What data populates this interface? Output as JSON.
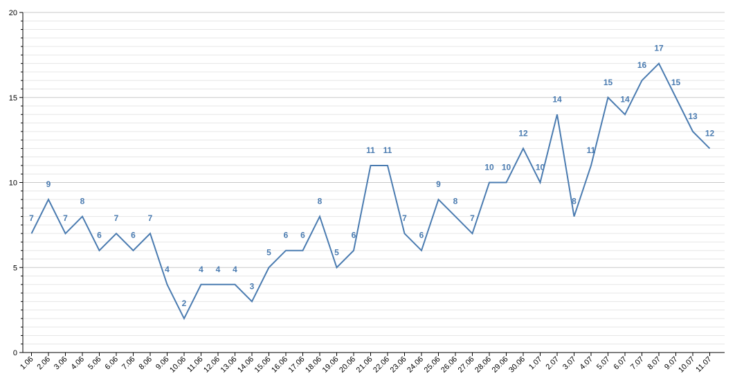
{
  "chart_data": {
    "type": "line",
    "title": "",
    "xlabel": "",
    "ylabel": "",
    "ylim": [
      0,
      20
    ],
    "y_ticks": [
      0,
      5,
      10,
      15,
      20
    ],
    "grid": true,
    "categories": [
      "1.06",
      "2.06",
      "3.06",
      "4.06",
      "5.06",
      "6.06",
      "7.06",
      "8.06",
      "9.06",
      "10.06",
      "11.06",
      "12.06",
      "13.06",
      "14.06",
      "15.06",
      "16.06",
      "17.06",
      "18.06",
      "19.06",
      "20.06",
      "21.06",
      "22.06",
      "23.06",
      "24.06",
      "25.06",
      "26.06",
      "27.06",
      "28.06",
      "29.06",
      "30.06",
      "1.07",
      "2.07",
      "3.07",
      "4.07",
      "5.07",
      "6.07",
      "7.07",
      "8.07",
      "9.07",
      "10.07",
      "11.07"
    ],
    "series": [
      {
        "values": [
          7,
          9,
          7,
          8,
          6,
          7,
          6,
          7,
          4,
          2,
          4,
          4,
          4,
          3,
          5,
          6,
          6,
          8,
          5,
          6,
          11,
          11,
          7,
          6,
          9,
          8,
          7,
          10,
          10,
          12,
          10,
          14,
          8,
          11,
          15,
          14,
          16,
          17,
          15,
          13,
          12
        ],
        "color": "#4a7bb0"
      }
    ]
  }
}
